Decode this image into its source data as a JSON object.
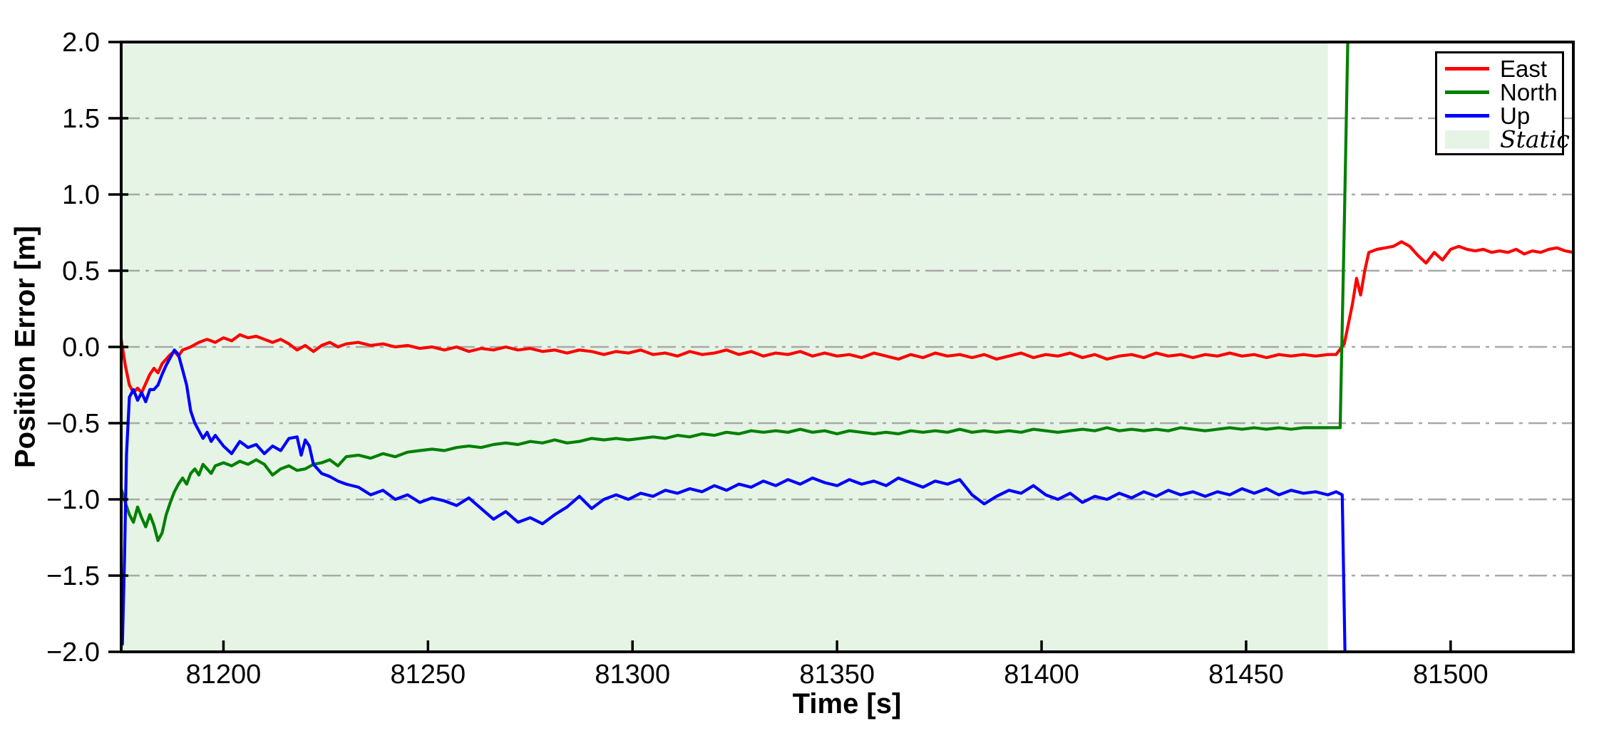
{
  "chart_data": {
    "type": "line",
    "title": "",
    "xlabel": "Time [s]",
    "ylabel": "Position Error [m]",
    "xlim": [
      81175,
      81530
    ],
    "ylim": [
      -2.0,
      2.0
    ],
    "xticks": [
      81200,
      81250,
      81300,
      81350,
      81400,
      81450,
      81500
    ],
    "xtick_labels": [
      "81200",
      "81250",
      "81300",
      "81350",
      "81400",
      "81450",
      "81500"
    ],
    "yticks": [
      -2.0,
      -1.5,
      -1.0,
      -0.5,
      0.0,
      0.5,
      1.0,
      1.5,
      2.0
    ],
    "ytick_labels": [
      "−2.0",
      "−1.5",
      "−1.0",
      "−0.5",
      "0.0",
      "0.5",
      "1.0",
      "1.5",
      "2.0"
    ],
    "grid": {
      "axis": "y",
      "style": "dashdot",
      "color": "#a8a8a8"
    },
    "static_region": {
      "start": 81175,
      "end": 81470,
      "color": "#e5f4e5",
      "label": "Static"
    },
    "legend": {
      "position": "upper right",
      "entries": [
        {
          "label": "East",
          "color": "#ff0000",
          "type": "line"
        },
        {
          "label": "North",
          "color": "#008000",
          "type": "line"
        },
        {
          "label": "Up",
          "color": "#0000ff",
          "type": "line"
        },
        {
          "label": "Static",
          "color": "#e5f4e5",
          "type": "patch"
        }
      ]
    },
    "series": [
      {
        "name": "East",
        "color": "#ff0000",
        "x": [
          81175,
          81176,
          81177,
          81178,
          81179,
          81180,
          81181,
          81182,
          81183,
          81184,
          81185,
          81186,
          81187,
          81188,
          81189,
          81190,
          81192,
          81194,
          81196,
          81198,
          81200,
          81202,
          81204,
          81206,
          81208,
          81210,
          81212,
          81214,
          81216,
          81218,
          81220,
          81222,
          81224,
          81226,
          81228,
          81230,
          81233,
          81236,
          81239,
          81242,
          81245,
          81248,
          81251,
          81254,
          81257,
          81260,
          81263,
          81266,
          81269,
          81272,
          81275,
          81278,
          81281,
          81284,
          81287,
          81290,
          81293,
          81296,
          81299,
          81302,
          81305,
          81308,
          81311,
          81314,
          81317,
          81320,
          81323,
          81326,
          81329,
          81332,
          81335,
          81338,
          81341,
          81344,
          81347,
          81350,
          81353,
          81356,
          81359,
          81362,
          81365,
          81368,
          81371,
          81374,
          81377,
          81380,
          81383,
          81386,
          81389,
          81392,
          81395,
          81398,
          81401,
          81404,
          81407,
          81410,
          81413,
          81416,
          81419,
          81422,
          81425,
          81428,
          81431,
          81434,
          81437,
          81440,
          81443,
          81446,
          81449,
          81452,
          81455,
          81458,
          81461,
          81464,
          81467,
          81470,
          81472,
          81474,
          81476,
          81477,
          81478,
          81479,
          81480,
          81482,
          81484,
          81486,
          81488,
          81490,
          81492,
          81494,
          81496,
          81498,
          81500,
          81502,
          81504,
          81506,
          81508,
          81510,
          81512,
          81514,
          81516,
          81518,
          81520,
          81522,
          81524,
          81526,
          81528,
          81530
        ],
        "y": [
          0.05,
          -0.12,
          -0.25,
          -0.3,
          -0.27,
          -0.3,
          -0.24,
          -0.18,
          -0.14,
          -0.17,
          -0.11,
          -0.08,
          -0.05,
          -0.03,
          -0.06,
          -0.02,
          0.0,
          0.03,
          0.05,
          0.03,
          0.06,
          0.04,
          0.08,
          0.06,
          0.07,
          0.05,
          0.03,
          0.05,
          0.02,
          -0.02,
          0.01,
          -0.03,
          0.01,
          0.03,
          0.0,
          0.02,
          0.03,
          0.01,
          0.02,
          0.0,
          0.01,
          -0.01,
          0.0,
          -0.02,
          0.0,
          -0.03,
          -0.01,
          -0.02,
          0.0,
          -0.02,
          -0.01,
          -0.03,
          -0.02,
          -0.04,
          -0.02,
          -0.03,
          -0.05,
          -0.03,
          -0.04,
          -0.02,
          -0.05,
          -0.04,
          -0.06,
          -0.03,
          -0.05,
          -0.04,
          -0.02,
          -0.05,
          -0.03,
          -0.06,
          -0.04,
          -0.05,
          -0.03,
          -0.06,
          -0.04,
          -0.06,
          -0.05,
          -0.07,
          -0.04,
          -0.06,
          -0.08,
          -0.05,
          -0.07,
          -0.04,
          -0.06,
          -0.05,
          -0.07,
          -0.05,
          -0.08,
          -0.06,
          -0.04,
          -0.07,
          -0.05,
          -0.06,
          -0.04,
          -0.07,
          -0.05,
          -0.08,
          -0.06,
          -0.05,
          -0.07,
          -0.04,
          -0.06,
          -0.05,
          -0.07,
          -0.05,
          -0.06,
          -0.04,
          -0.06,
          -0.05,
          -0.07,
          -0.05,
          -0.06,
          -0.05,
          -0.06,
          -0.05,
          -0.05,
          0.02,
          0.28,
          0.45,
          0.34,
          0.5,
          0.62,
          0.64,
          0.65,
          0.66,
          0.69,
          0.66,
          0.6,
          0.55,
          0.62,
          0.57,
          0.64,
          0.66,
          0.64,
          0.63,
          0.64,
          0.62,
          0.63,
          0.62,
          0.64,
          0.61,
          0.63,
          0.62,
          0.64,
          0.65,
          0.63,
          0.62
        ]
      },
      {
        "name": "North",
        "color": "#008000",
        "x": [
          81175,
          81176,
          81177,
          81178,
          81179,
          81180,
          81181,
          81182,
          81183,
          81184,
          81185,
          81186,
          81187,
          81188,
          81189,
          81190,
          81191,
          81192,
          81193,
          81194,
          81195,
          81196,
          81197,
          81198,
          81200,
          81202,
          81204,
          81206,
          81208,
          81210,
          81212,
          81214,
          81216,
          81218,
          81220,
          81222,
          81224,
          81226,
          81228,
          81230,
          81233,
          81236,
          81239,
          81242,
          81245,
          81248,
          81251,
          81254,
          81257,
          81260,
          81263,
          81266,
          81269,
          81272,
          81275,
          81278,
          81281,
          81284,
          81287,
          81290,
          81293,
          81296,
          81299,
          81302,
          81305,
          81308,
          81311,
          81314,
          81317,
          81320,
          81323,
          81326,
          81329,
          81332,
          81335,
          81338,
          81341,
          81344,
          81347,
          81350,
          81353,
          81356,
          81359,
          81362,
          81365,
          81368,
          81371,
          81374,
          81377,
          81380,
          81383,
          81386,
          81389,
          81392,
          81395,
          81398,
          81401,
          81404,
          81407,
          81410,
          81413,
          81416,
          81419,
          81422,
          81425,
          81428,
          81431,
          81434,
          81437,
          81440,
          81443,
          81446,
          81449,
          81452,
          81455,
          81458,
          81461,
          81464,
          81467,
          81470,
          81473,
          81474,
          81475
        ],
        "y": [
          -0.93,
          -1.02,
          -1.1,
          -1.15,
          -1.05,
          -1.12,
          -1.18,
          -1.1,
          -1.17,
          -1.27,
          -1.22,
          -1.1,
          -1.02,
          -0.95,
          -0.9,
          -0.86,
          -0.9,
          -0.83,
          -0.8,
          -0.84,
          -0.77,
          -0.8,
          -0.83,
          -0.78,
          -0.76,
          -0.78,
          -0.75,
          -0.77,
          -0.74,
          -0.77,
          -0.84,
          -0.8,
          -0.78,
          -0.81,
          -0.8,
          -0.77,
          -0.76,
          -0.74,
          -0.78,
          -0.72,
          -0.71,
          -0.73,
          -0.7,
          -0.72,
          -0.69,
          -0.68,
          -0.67,
          -0.68,
          -0.66,
          -0.65,
          -0.66,
          -0.64,
          -0.63,
          -0.64,
          -0.62,
          -0.63,
          -0.61,
          -0.63,
          -0.62,
          -0.6,
          -0.61,
          -0.6,
          -0.61,
          -0.6,
          -0.59,
          -0.6,
          -0.58,
          -0.59,
          -0.57,
          -0.58,
          -0.56,
          -0.57,
          -0.55,
          -0.56,
          -0.55,
          -0.56,
          -0.54,
          -0.56,
          -0.55,
          -0.57,
          -0.55,
          -0.56,
          -0.57,
          -0.56,
          -0.57,
          -0.55,
          -0.56,
          -0.55,
          -0.56,
          -0.54,
          -0.56,
          -0.55,
          -0.56,
          -0.55,
          -0.56,
          -0.54,
          -0.55,
          -0.56,
          -0.55,
          -0.54,
          -0.55,
          -0.53,
          -0.55,
          -0.54,
          -0.55,
          -0.54,
          -0.55,
          -0.53,
          -0.54,
          -0.55,
          -0.54,
          -0.53,
          -0.54,
          -0.53,
          -0.54,
          -0.53,
          -0.54,
          -0.53,
          -0.53,
          -0.53,
          -0.53,
          0.8,
          2.2
        ]
      },
      {
        "name": "Up",
        "color": "#0000ff",
        "x": [
          81175.3,
          81175.8,
          81176.3,
          81177,
          81178,
          81179,
          81180,
          81181,
          81182,
          81183,
          81184,
          81185,
          81186,
          81187,
          81188,
          81189,
          81190,
          81191,
          81192,
          81193,
          81194,
          81195,
          81196,
          81197,
          81198,
          81200,
          81202,
          81204,
          81206,
          81208,
          81210,
          81212,
          81214,
          81216,
          81218,
          81219,
          81220,
          81221,
          81222,
          81224,
          81226,
          81228,
          81230,
          81233,
          81236,
          81239,
          81242,
          81245,
          81248,
          81251,
          81254,
          81257,
          81260,
          81263,
          81266,
          81269,
          81272,
          81275,
          81278,
          81281,
          81284,
          81287,
          81290,
          81293,
          81296,
          81299,
          81302,
          81305,
          81308,
          81311,
          81314,
          81317,
          81320,
          81323,
          81326,
          81329,
          81332,
          81335,
          81338,
          81341,
          81344,
          81347,
          81350,
          81353,
          81356,
          81359,
          81362,
          81365,
          81368,
          81371,
          81374,
          81377,
          81380,
          81383,
          81386,
          81389,
          81392,
          81395,
          81398,
          81401,
          81404,
          81407,
          81410,
          81413,
          81416,
          81419,
          81422,
          81425,
          81428,
          81431,
          81434,
          81437,
          81440,
          81443,
          81446,
          81449,
          81452,
          81455,
          81458,
          81461,
          81464,
          81467,
          81470,
          81472,
          81473.5,
          81474.5
        ],
        "y": [
          -1.95,
          -1.4,
          -0.7,
          -0.33,
          -0.28,
          -0.35,
          -0.3,
          -0.36,
          -0.28,
          -0.28,
          -0.25,
          -0.18,
          -0.12,
          -0.07,
          -0.02,
          -0.05,
          -0.15,
          -0.25,
          -0.42,
          -0.5,
          -0.55,
          -0.6,
          -0.56,
          -0.62,
          -0.58,
          -0.65,
          -0.7,
          -0.62,
          -0.66,
          -0.64,
          -0.7,
          -0.65,
          -0.68,
          -0.6,
          -0.59,
          -0.71,
          -0.61,
          -0.65,
          -0.77,
          -0.83,
          -0.85,
          -0.88,
          -0.9,
          -0.92,
          -0.97,
          -0.94,
          -1.0,
          -0.97,
          -1.02,
          -0.99,
          -1.01,
          -1.04,
          -0.99,
          -1.06,
          -1.13,
          -1.08,
          -1.15,
          -1.12,
          -1.16,
          -1.1,
          -1.05,
          -0.98,
          -1.06,
          -1.0,
          -0.97,
          -1.0,
          -0.96,
          -0.98,
          -0.94,
          -0.96,
          -0.93,
          -0.95,
          -0.91,
          -0.94,
          -0.9,
          -0.92,
          -0.88,
          -0.91,
          -0.87,
          -0.9,
          -0.86,
          -0.89,
          -0.91,
          -0.87,
          -0.9,
          -0.88,
          -0.91,
          -0.86,
          -0.89,
          -0.92,
          -0.88,
          -0.9,
          -0.87,
          -0.97,
          -1.03,
          -0.98,
          -0.94,
          -0.96,
          -0.91,
          -0.97,
          -1.0,
          -0.96,
          -1.02,
          -0.98,
          -1.0,
          -0.96,
          -0.99,
          -0.95,
          -0.98,
          -0.94,
          -0.97,
          -0.95,
          -0.98,
          -0.95,
          -0.97,
          -0.93,
          -0.96,
          -0.93,
          -0.97,
          -0.94,
          -0.96,
          -0.95,
          -0.97,
          -0.95,
          -0.97,
          -2.5
        ]
      }
    ]
  }
}
